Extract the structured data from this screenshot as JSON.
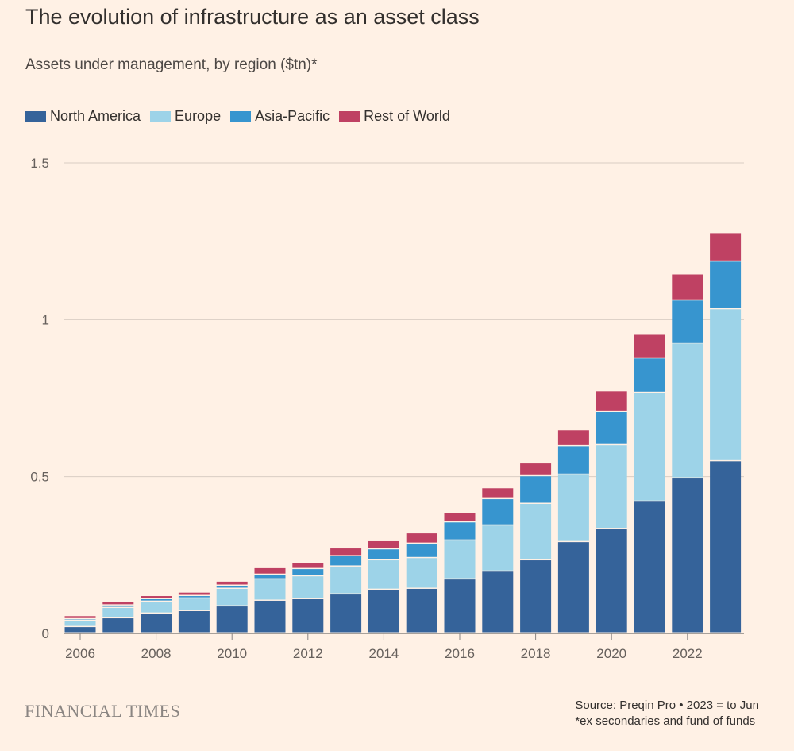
{
  "title": "The evolution of infrastructure as an asset class",
  "subtitle": "Assets under management, by region ($tn)*",
  "footer": {
    "brand": "FINANCIAL TIMES",
    "source": "Source: Preqin Pro • 2023 = to Jun",
    "note": "*ex secondaries and fund of funds"
  },
  "chart_data": {
    "type": "bar",
    "stacked": true,
    "title": "The evolution of infrastructure as an asset class",
    "ylabel": "Assets under management ($tn)",
    "xlabel": "",
    "ylim": [
      0,
      1.5
    ],
    "yticks": [
      {
        "v": 0,
        "label": "0"
      },
      {
        "v": 0.5,
        "label": "0.5"
      },
      {
        "v": 1,
        "label": "1"
      },
      {
        "v": 1.5,
        "label": "1.5"
      }
    ],
    "categories": [
      "2006",
      "2007",
      "2008",
      "2009",
      "2010",
      "2011",
      "2012",
      "2013",
      "2014",
      "2015",
      "2016",
      "2017",
      "2018",
      "2019",
      "2020",
      "2021",
      "2022",
      "2023"
    ],
    "xtick_labels": [
      "2006",
      "2008",
      "2010",
      "2012",
      "2014",
      "2016",
      "2018",
      "2020",
      "2022"
    ],
    "grid": true,
    "legend_position": "top-left",
    "series": [
      {
        "name": "North America",
        "color": "#35639a",
        "values": [
          0.02,
          0.048,
          0.063,
          0.071,
          0.086,
          0.104,
          0.109,
          0.124,
          0.139,
          0.142,
          0.172,
          0.197,
          0.233,
          0.291,
          0.332,
          0.42,
          0.494,
          0.549
        ]
      },
      {
        "name": "Europe",
        "color": "#9dd3e8",
        "values": [
          0.02,
          0.033,
          0.038,
          0.04,
          0.056,
          0.068,
          0.073,
          0.089,
          0.094,
          0.098,
          0.124,
          0.147,
          0.18,
          0.215,
          0.268,
          0.347,
          0.43,
          0.484
        ]
      },
      {
        "name": "Asia-Pacific",
        "color": "#3795cf",
        "values": [
          0.005,
          0.008,
          0.008,
          0.008,
          0.01,
          0.015,
          0.023,
          0.033,
          0.035,
          0.046,
          0.058,
          0.084,
          0.088,
          0.091,
          0.106,
          0.109,
          0.137,
          0.152
        ]
      },
      {
        "name": "Rest of World",
        "color": "#bf4163",
        "values": [
          0.01,
          0.01,
          0.01,
          0.011,
          0.013,
          0.021,
          0.018,
          0.025,
          0.026,
          0.033,
          0.031,
          0.035,
          0.041,
          0.051,
          0.066,
          0.078,
          0.083,
          0.091
        ]
      }
    ]
  }
}
